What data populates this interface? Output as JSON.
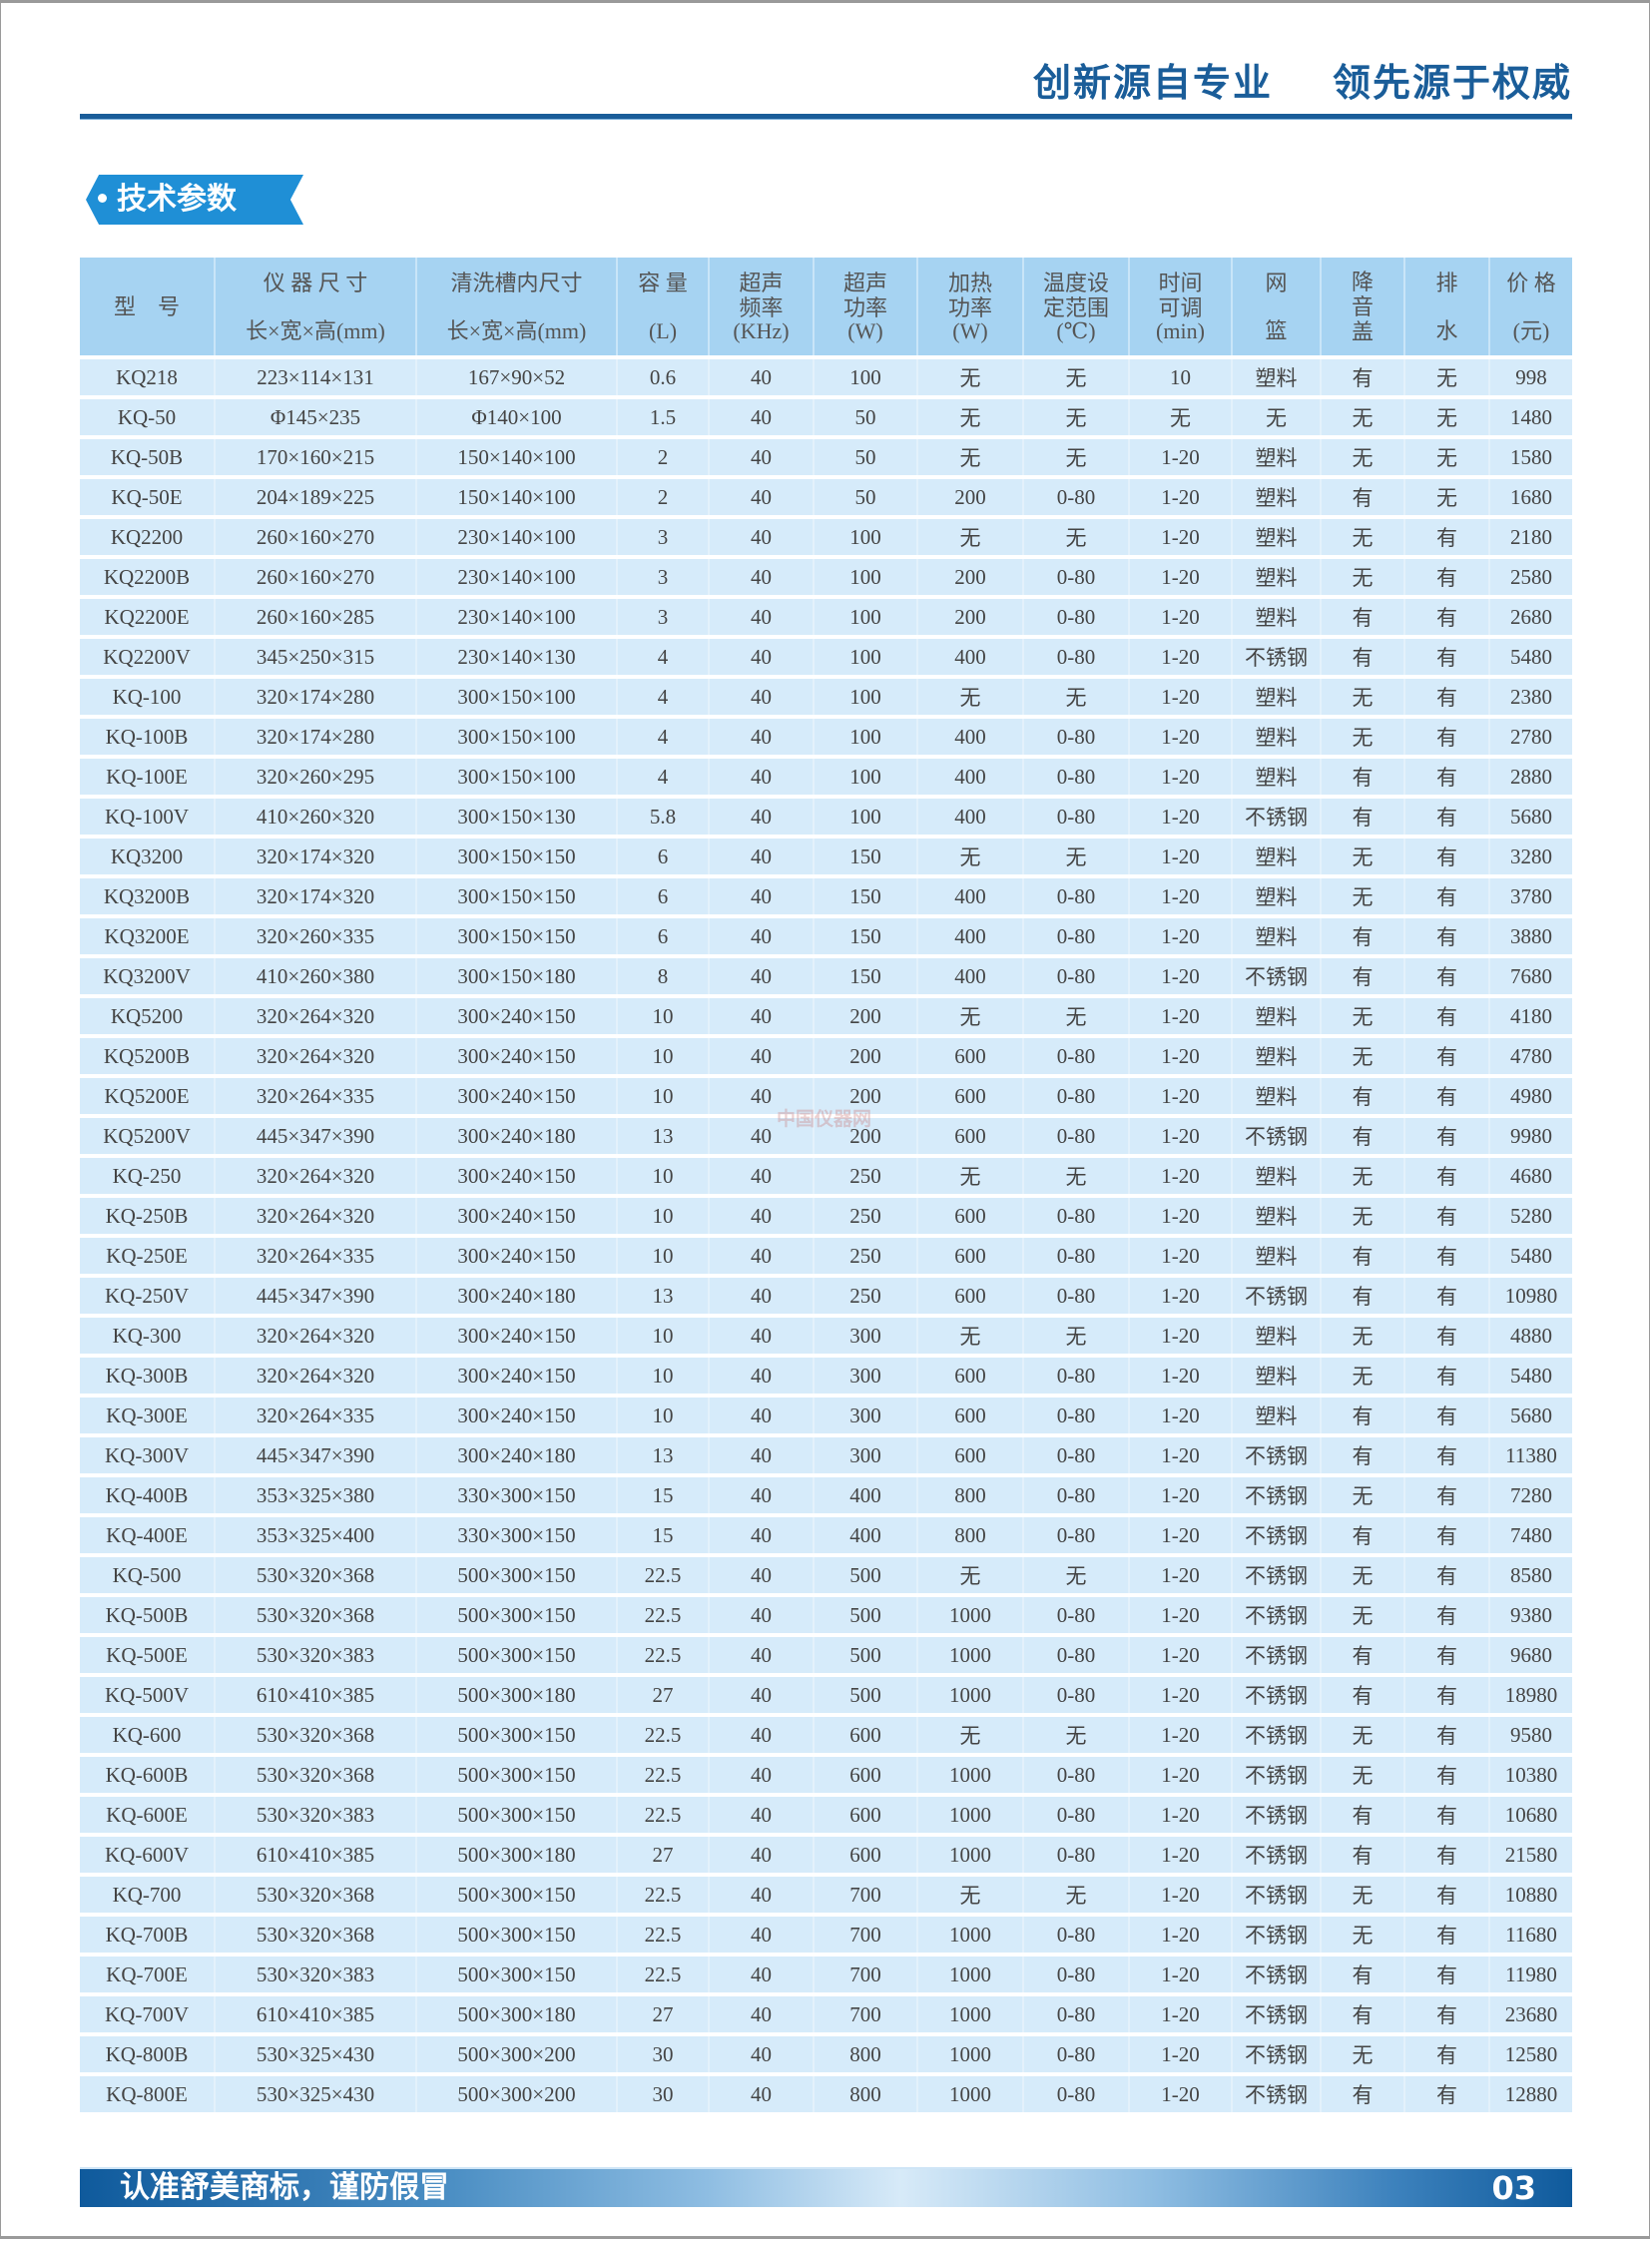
{
  "header": {
    "slogan_left": "创新源自专业",
    "slogan_right": "领先源于权威"
  },
  "section_title": "技术参数",
  "watermark": "中国仪器网",
  "table": {
    "columns": [
      {
        "top": "型　号",
        "bottom": ""
      },
      {
        "top": "仪 器 尺 寸",
        "bottom": "长×宽×高(mm)"
      },
      {
        "top": "清洗槽内尺寸",
        "bottom": "长×宽×高(mm)"
      },
      {
        "top": "容 量",
        "bottom": "(L)"
      },
      {
        "top": "超声 频率",
        "bottom": "(KHz)"
      },
      {
        "top": "超声 功率",
        "bottom": "(W)"
      },
      {
        "top": "加热 功率",
        "bottom": "(W)"
      },
      {
        "top": "温度设 定范围",
        "bottom": "(℃)"
      },
      {
        "top": "时间 可调",
        "bottom": "(min)"
      },
      {
        "top": "网",
        "bottom": "篮"
      },
      {
        "top": "降 音 盖",
        "bottom": ""
      },
      {
        "top": "排",
        "bottom": "水"
      },
      {
        "top": "价 格",
        "bottom": "(元)"
      }
    ],
    "rows": [
      [
        "KQ218",
        "223×114×131",
        "167×90×52",
        "0.6",
        "40",
        "100",
        "无",
        "无",
        "10",
        "塑料",
        "有",
        "无",
        "998"
      ],
      [
        "KQ-50",
        "Φ145×235",
        "Φ140×100",
        "1.5",
        "40",
        "50",
        "无",
        "无",
        "无",
        "无",
        "无",
        "无",
        "1480"
      ],
      [
        "KQ-50B",
        "170×160×215",
        "150×140×100",
        "2",
        "40",
        "50",
        "无",
        "无",
        "1-20",
        "塑料",
        "无",
        "无",
        "1580"
      ],
      [
        "KQ-50E",
        "204×189×225",
        "150×140×100",
        "2",
        "40",
        "50",
        "200",
        "0-80",
        "1-20",
        "塑料",
        "有",
        "无",
        "1680"
      ],
      [
        "KQ2200",
        "260×160×270",
        "230×140×100",
        "3",
        "40",
        "100",
        "无",
        "无",
        "1-20",
        "塑料",
        "无",
        "有",
        "2180"
      ],
      [
        "KQ2200B",
        "260×160×270",
        "230×140×100",
        "3",
        "40",
        "100",
        "200",
        "0-80",
        "1-20",
        "塑料",
        "无",
        "有",
        "2580"
      ],
      [
        "KQ2200E",
        "260×160×285",
        "230×140×100",
        "3",
        "40",
        "100",
        "200",
        "0-80",
        "1-20",
        "塑料",
        "有",
        "有",
        "2680"
      ],
      [
        "KQ2200V",
        "345×250×315",
        "230×140×130",
        "4",
        "40",
        "100",
        "400",
        "0-80",
        "1-20",
        "不锈钢",
        "有",
        "有",
        "5480"
      ],
      [
        "KQ-100",
        "320×174×280",
        "300×150×100",
        "4",
        "40",
        "100",
        "无",
        "无",
        "1-20",
        "塑料",
        "无",
        "有",
        "2380"
      ],
      [
        "KQ-100B",
        "320×174×280",
        "300×150×100",
        "4",
        "40",
        "100",
        "400",
        "0-80",
        "1-20",
        "塑料",
        "无",
        "有",
        "2780"
      ],
      [
        "KQ-100E",
        "320×260×295",
        "300×150×100",
        "4",
        "40",
        "100",
        "400",
        "0-80",
        "1-20",
        "塑料",
        "有",
        "有",
        "2880"
      ],
      [
        "KQ-100V",
        "410×260×320",
        "300×150×130",
        "5.8",
        "40",
        "100",
        "400",
        "0-80",
        "1-20",
        "不锈钢",
        "有",
        "有",
        "5680"
      ],
      [
        "KQ3200",
        "320×174×320",
        "300×150×150",
        "6",
        "40",
        "150",
        "无",
        "无",
        "1-20",
        "塑料",
        "无",
        "有",
        "3280"
      ],
      [
        "KQ3200B",
        "320×174×320",
        "300×150×150",
        "6",
        "40",
        "150",
        "400",
        "0-80",
        "1-20",
        "塑料",
        "无",
        "有",
        "3780"
      ],
      [
        "KQ3200E",
        "320×260×335",
        "300×150×150",
        "6",
        "40",
        "150",
        "400",
        "0-80",
        "1-20",
        "塑料",
        "有",
        "有",
        "3880"
      ],
      [
        "KQ3200V",
        "410×260×380",
        "300×150×180",
        "8",
        "40",
        "150",
        "400",
        "0-80",
        "1-20",
        "不锈钢",
        "有",
        "有",
        "7680"
      ],
      [
        "KQ5200",
        "320×264×320",
        "300×240×150",
        "10",
        "40",
        "200",
        "无",
        "无",
        "1-20",
        "塑料",
        "无",
        "有",
        "4180"
      ],
      [
        "KQ5200B",
        "320×264×320",
        "300×240×150",
        "10",
        "40",
        "200",
        "600",
        "0-80",
        "1-20",
        "塑料",
        "无",
        "有",
        "4780"
      ],
      [
        "KQ5200E",
        "320×264×335",
        "300×240×150",
        "10",
        "40",
        "200",
        "600",
        "0-80",
        "1-20",
        "塑料",
        "有",
        "有",
        "4980"
      ],
      [
        "KQ5200V",
        "445×347×390",
        "300×240×180",
        "13",
        "40",
        "200",
        "600",
        "0-80",
        "1-20",
        "不锈钢",
        "有",
        "有",
        "9980"
      ],
      [
        "KQ-250",
        "320×264×320",
        "300×240×150",
        "10",
        "40",
        "250",
        "无",
        "无",
        "1-20",
        "塑料",
        "无",
        "有",
        "4680"
      ],
      [
        "KQ-250B",
        "320×264×320",
        "300×240×150",
        "10",
        "40",
        "250",
        "600",
        "0-80",
        "1-20",
        "塑料",
        "无",
        "有",
        "5280"
      ],
      [
        "KQ-250E",
        "320×264×335",
        "300×240×150",
        "10",
        "40",
        "250",
        "600",
        "0-80",
        "1-20",
        "塑料",
        "有",
        "有",
        "5480"
      ],
      [
        "KQ-250V",
        "445×347×390",
        "300×240×180",
        "13",
        "40",
        "250",
        "600",
        "0-80",
        "1-20",
        "不锈钢",
        "有",
        "有",
        "10980"
      ],
      [
        "KQ-300",
        "320×264×320",
        "300×240×150",
        "10",
        "40",
        "300",
        "无",
        "无",
        "1-20",
        "塑料",
        "无",
        "有",
        "4880"
      ],
      [
        "KQ-300B",
        "320×264×320",
        "300×240×150",
        "10",
        "40",
        "300",
        "600",
        "0-80",
        "1-20",
        "塑料",
        "无",
        "有",
        "5480"
      ],
      [
        "KQ-300E",
        "320×264×335",
        "300×240×150",
        "10",
        "40",
        "300",
        "600",
        "0-80",
        "1-20",
        "塑料",
        "有",
        "有",
        "5680"
      ],
      [
        "KQ-300V",
        "445×347×390",
        "300×240×180",
        "13",
        "40",
        "300",
        "600",
        "0-80",
        "1-20",
        "不锈钢",
        "有",
        "有",
        "11380"
      ],
      [
        "KQ-400B",
        "353×325×380",
        "330×300×150",
        "15",
        "40",
        "400",
        "800",
        "0-80",
        "1-20",
        "不锈钢",
        "无",
        "有",
        "7280"
      ],
      [
        "KQ-400E",
        "353×325×400",
        "330×300×150",
        "15",
        "40",
        "400",
        "800",
        "0-80",
        "1-20",
        "不锈钢",
        "有",
        "有",
        "7480"
      ],
      [
        "KQ-500",
        "530×320×368",
        "500×300×150",
        "22.5",
        "40",
        "500",
        "无",
        "无",
        "1-20",
        "不锈钢",
        "无",
        "有",
        "8580"
      ],
      [
        "KQ-500B",
        "530×320×368",
        "500×300×150",
        "22.5",
        "40",
        "500",
        "1000",
        "0-80",
        "1-20",
        "不锈钢",
        "无",
        "有",
        "9380"
      ],
      [
        "KQ-500E",
        "530×320×383",
        "500×300×150",
        "22.5",
        "40",
        "500",
        "1000",
        "0-80",
        "1-20",
        "不锈钢",
        "有",
        "有",
        "9680"
      ],
      [
        "KQ-500V",
        "610×410×385",
        "500×300×180",
        "27",
        "40",
        "500",
        "1000",
        "0-80",
        "1-20",
        "不锈钢",
        "有",
        "有",
        "18980"
      ],
      [
        "KQ-600",
        "530×320×368",
        "500×300×150",
        "22.5",
        "40",
        "600",
        "无",
        "无",
        "1-20",
        "不锈钢",
        "无",
        "有",
        "9580"
      ],
      [
        "KQ-600B",
        "530×320×368",
        "500×300×150",
        "22.5",
        "40",
        "600",
        "1000",
        "0-80",
        "1-20",
        "不锈钢",
        "无",
        "有",
        "10380"
      ],
      [
        "KQ-600E",
        "530×320×383",
        "500×300×150",
        "22.5",
        "40",
        "600",
        "1000",
        "0-80",
        "1-20",
        "不锈钢",
        "有",
        "有",
        "10680"
      ],
      [
        "KQ-600V",
        "610×410×385",
        "500×300×180",
        "27",
        "40",
        "600",
        "1000",
        "0-80",
        "1-20",
        "不锈钢",
        "有",
        "有",
        "21580"
      ],
      [
        "KQ-700",
        "530×320×368",
        "500×300×150",
        "22.5",
        "40",
        "700",
        "无",
        "无",
        "1-20",
        "不锈钢",
        "无",
        "有",
        "10880"
      ],
      [
        "KQ-700B",
        "530×320×368",
        "500×300×150",
        "22.5",
        "40",
        "700",
        "1000",
        "0-80",
        "1-20",
        "不锈钢",
        "无",
        "有",
        "11680"
      ],
      [
        "KQ-700E",
        "530×320×383",
        "500×300×150",
        "22.5",
        "40",
        "700",
        "1000",
        "0-80",
        "1-20",
        "不锈钢",
        "有",
        "有",
        "11980"
      ],
      [
        "KQ-700V",
        "610×410×385",
        "500×300×180",
        "27",
        "40",
        "700",
        "1000",
        "0-80",
        "1-20",
        "不锈钢",
        "有",
        "有",
        "23680"
      ],
      [
        "KQ-800B",
        "530×325×430",
        "500×300×200",
        "30",
        "40",
        "800",
        "1000",
        "0-80",
        "1-20",
        "不锈钢",
        "无",
        "有",
        "12580"
      ],
      [
        "KQ-800E",
        "530×325×430",
        "500×300×200",
        "30",
        "40",
        "800",
        "1000",
        "0-80",
        "1-20",
        "不锈钢",
        "有",
        "有",
        "12880"
      ]
    ]
  },
  "footer": {
    "text": "认准舒美商标，谨防假冒",
    "page_number": "03"
  },
  "colors": {
    "brand_blue": "#1a5d99",
    "tag_blue": "#1f8fd6",
    "header_bg": "#a6d3f2",
    "row_bg": "#d6ebfa"
  }
}
